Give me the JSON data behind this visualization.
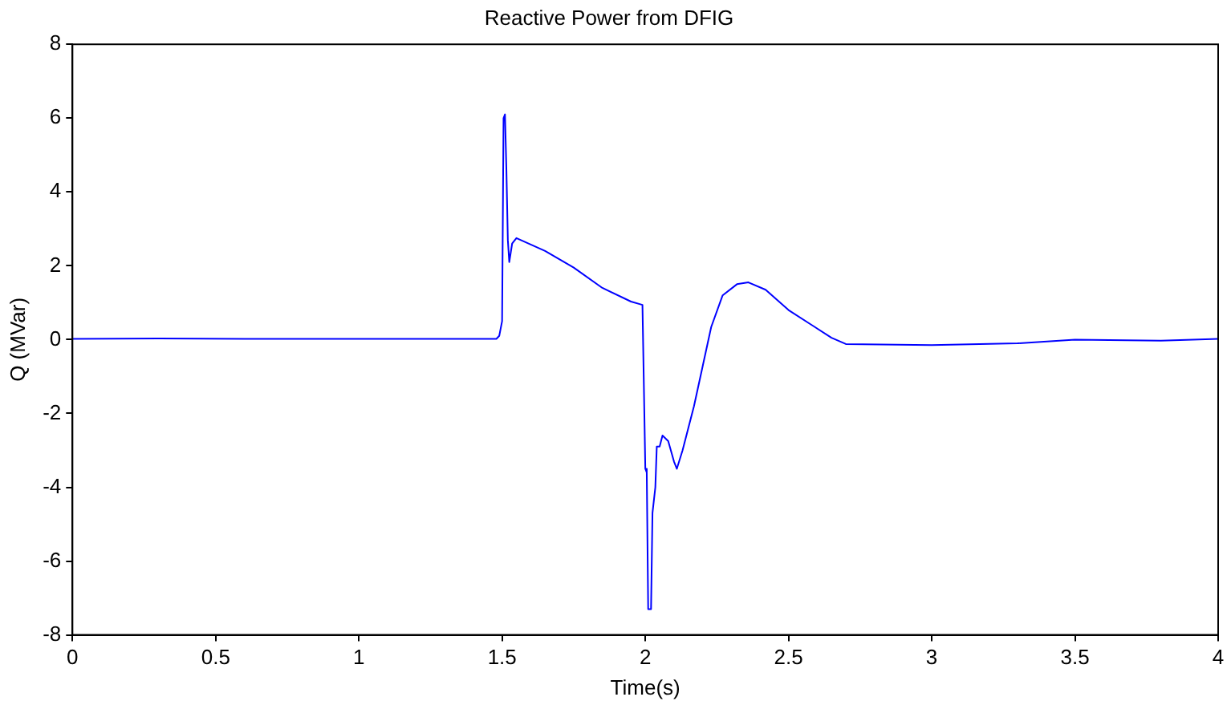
{
  "chart_data": {
    "type": "line",
    "title": "Reactive Power from DFIG",
    "xlabel": "Time(s)",
    "ylabel": "Q (MVar)",
    "xlim": [
      0,
      4
    ],
    "xticks": [
      0,
      0.5,
      1,
      1.5,
      2,
      2.5,
      3,
      3.5,
      4
    ],
    "ylim": [
      -8,
      8
    ],
    "yticks": [
      -8,
      -6,
      -4,
      -2,
      0,
      2,
      4,
      6,
      8
    ],
    "grid": false,
    "legend": false,
    "marker": "none",
    "line_style": "solid",
    "series": [
      {
        "color": "#0000ff",
        "x": [
          0,
          0.3,
          0.6,
          0.9,
          1.2,
          1.48,
          1.49,
          1.5,
          1.505,
          1.51,
          1.515,
          1.52,
          1.525,
          1.535,
          1.55,
          1.65,
          1.75,
          1.85,
          1.95,
          1.99,
          2.0,
          2.005,
          2.01,
          2.02,
          2.025,
          2.035,
          2.04,
          2.05,
          2.06,
          2.08,
          2.1,
          2.11,
          2.13,
          2.17,
          2.2,
          2.23,
          2.27,
          2.32,
          2.36,
          2.42,
          2.5,
          2.58,
          2.65,
          2.7,
          3.0,
          3.3,
          3.5,
          3.8,
          4.0
        ],
        "values": [
          0.02,
          0.03,
          0.02,
          0.02,
          0.02,
          0.02,
          0.1,
          0.5,
          6.0,
          6.1,
          4.6,
          2.7,
          2.1,
          2.6,
          2.75,
          2.4,
          1.95,
          1.4,
          1.03,
          0.94,
          -3.5,
          -3.6,
          -7.3,
          -7.3,
          -4.7,
          -4.0,
          -2.9,
          -2.9,
          -2.6,
          -2.75,
          -3.3,
          -3.5,
          -3.0,
          -1.8,
          -0.73,
          0.34,
          1.2,
          1.5,
          1.55,
          1.35,
          0.8,
          0.4,
          0.05,
          -0.12,
          -0.15,
          -0.1,
          0.0,
          -0.03,
          0.02
        ]
      }
    ]
  }
}
